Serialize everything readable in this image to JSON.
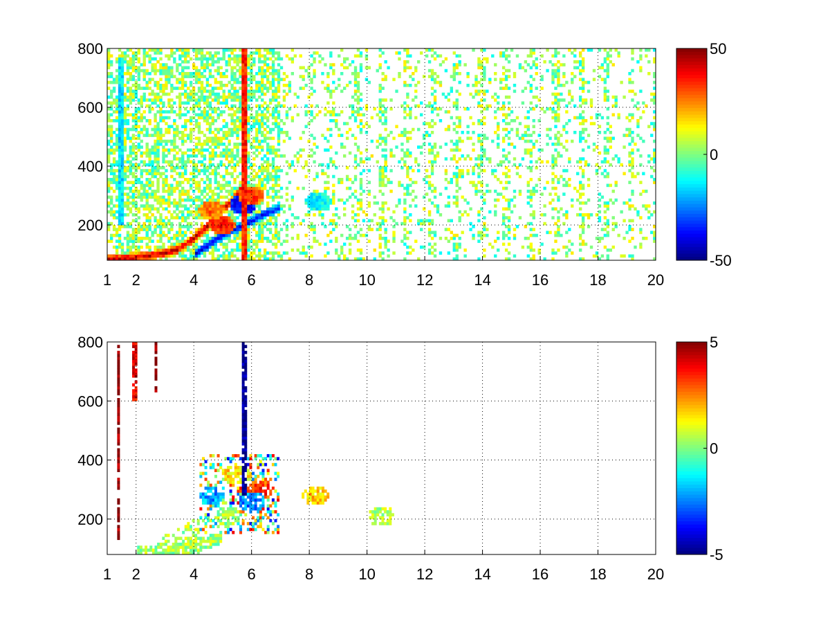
{
  "chart_data": [
    {
      "type": "heatmap",
      "title": "",
      "xlabel": "",
      "ylabel": "",
      "xlim": [
        1,
        20
      ],
      "ylim": [
        80,
        800
      ],
      "x_ticks": [
        1,
        2,
        4,
        6,
        8,
        10,
        12,
        14,
        16,
        18,
        20
      ],
      "y_ticks": [
        200,
        400,
        600,
        800
      ],
      "grid": true,
      "colormap": "jet",
      "clim": [
        -50,
        50
      ],
      "colorbar_ticks": [
        50,
        0,
        -50
      ],
      "features": [
        {
          "kind": "ridge",
          "x": [
            1.0,
            2.0,
            3.0,
            3.5,
            4.0,
            4.5,
            5.0,
            5.5,
            5.8
          ],
          "y": [
            85,
            90,
            105,
            120,
            155,
            200,
            250,
            300,
            350
          ],
          "value": 45
        },
        {
          "kind": "ridge",
          "x": [
            4.0,
            4.5,
            5.0,
            5.5,
            6.0,
            6.5,
            7.0
          ],
          "y": [
            100,
            130,
            165,
            190,
            215,
            240,
            260
          ],
          "value": -40
        },
        {
          "kind": "blob",
          "x": 5.7,
          "y": 270,
          "value": -45
        },
        {
          "kind": "blob",
          "x": 6.0,
          "y": 300,
          "value": 35
        },
        {
          "kind": "blob",
          "x": 5.0,
          "y": 200,
          "value": 40
        },
        {
          "kind": "blob",
          "x": 4.6,
          "y": 250,
          "value": 30
        },
        {
          "kind": "blob",
          "x": 8.3,
          "y": 280,
          "value": -15
        },
        {
          "kind": "vline",
          "x": 5.75,
          "y": [
            80,
            800
          ],
          "value": 35
        },
        {
          "kind": "vline",
          "x": 1.45,
          "y": [
            200,
            770
          ],
          "value": -15
        }
      ]
    },
    {
      "type": "heatmap",
      "title": "",
      "xlabel": "",
      "ylabel": "",
      "xlim": [
        1,
        20
      ],
      "ylim": [
        80,
        800
      ],
      "x_ticks": [
        1,
        2,
        4,
        6,
        8,
        10,
        12,
        14,
        16,
        18,
        20
      ],
      "y_ticks": [
        200,
        400,
        600,
        800
      ],
      "grid": true,
      "colormap": "jet",
      "clim": [
        -5,
        5
      ],
      "colorbar_ticks": [
        5,
        0,
        -5
      ],
      "features": [
        {
          "kind": "band",
          "x": [
            2.0,
            3.0,
            4.0,
            5.0
          ],
          "y": [
            88,
            95,
            105,
            140
          ],
          "value": 0.5
        },
        {
          "kind": "blob",
          "x": 4.6,
          "y": 280,
          "value": -2.5
        },
        {
          "kind": "blob",
          "x": 5.2,
          "y": 210,
          "value": 0.3
        },
        {
          "kind": "blob",
          "x": 6.3,
          "y": 300,
          "value": 4
        },
        {
          "kind": "blob",
          "x": 6.0,
          "y": 260,
          "value": -3
        },
        {
          "kind": "blob",
          "x": 5.5,
          "y": 350,
          "value": 2
        },
        {
          "kind": "blob",
          "x": 8.2,
          "y": 280,
          "value": 2
        },
        {
          "kind": "blob",
          "x": 10.5,
          "y": 210,
          "value": 0.6
        },
        {
          "kind": "vline",
          "x": 5.75,
          "y": [
            280,
            800
          ],
          "value": -5
        },
        {
          "kind": "vline",
          "x": 1.4,
          "y": [
            130,
            790
          ],
          "value": 5
        },
        {
          "kind": "vline",
          "x": 2.7,
          "y": [
            630,
            800
          ],
          "value": 5
        },
        {
          "kind": "vline",
          "x": 1.95,
          "y": [
            600,
            800
          ],
          "value": 4
        }
      ]
    }
  ]
}
